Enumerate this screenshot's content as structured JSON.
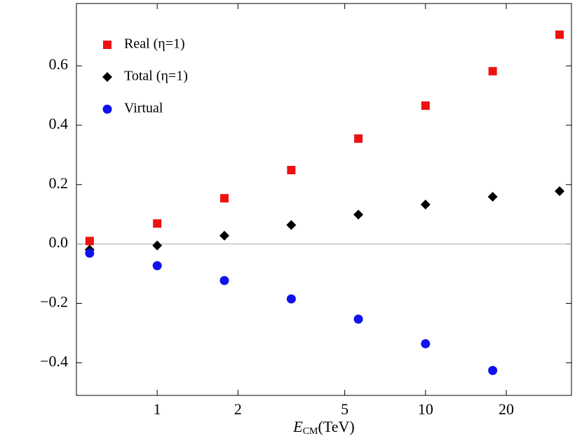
{
  "chart_data": {
    "type": "scatter",
    "x_label": [
      "E",
      "CM",
      "(TeV)"
    ],
    "x": [
      0.56,
      1,
      1.78,
      3.16,
      5.62,
      10,
      17.8,
      31.6
    ],
    "log_x": true,
    "xlim": [
      0.5,
      35
    ],
    "xticks": [
      1,
      2,
      5,
      10,
      20
    ],
    "ylim": [
      -0.51,
      0.81
    ],
    "yticks": [
      {
        "value": -0.4,
        "label": "−0.4"
      },
      {
        "value": -0.2,
        "label": "−0.2"
      },
      {
        "value": 0,
        "label": "0.0"
      },
      0.2,
      0.4,
      0.6
    ],
    "zero_line": true,
    "series": [
      {
        "name": "Real (η=1)",
        "color": "#ee1111",
        "marker": "square",
        "values": [
          0.01,
          0.069,
          0.154,
          0.249,
          0.355,
          0.466,
          0.582,
          0.705
        ]
      },
      {
        "name": "Total (η=1)",
        "color": "#000000",
        "marker": "diamond",
        "values": [
          -0.019,
          -0.005,
          0.028,
          0.064,
          0.099,
          0.133,
          0.159,
          0.178
        ]
      },
      {
        "name": "Virtual",
        "color": "#1111ee",
        "marker": "circle",
        "values": [
          -0.031,
          -0.073,
          -0.123,
          -0.185,
          -0.253,
          -0.336,
          -0.426,
          null
        ]
      }
    ]
  }
}
